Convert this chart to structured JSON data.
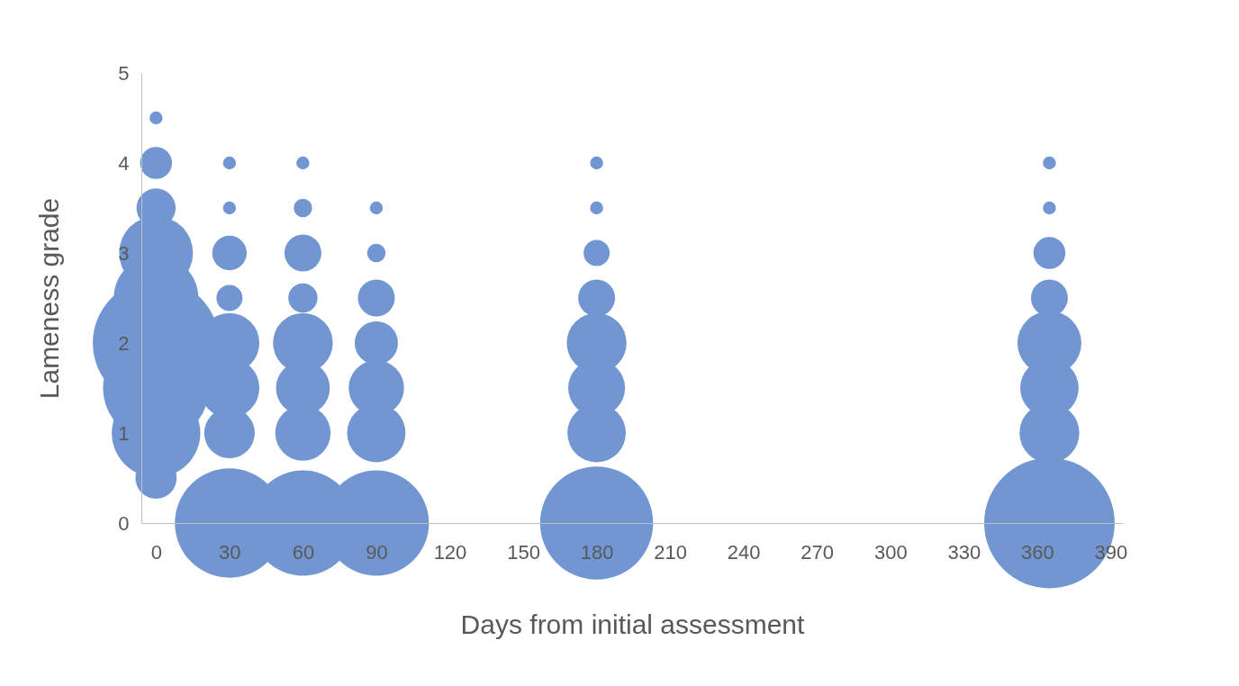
{
  "chart_data": {
    "type": "bubble",
    "xlabel": "Days from initial assessment",
    "ylabel": "Lameness grade",
    "relative": false,
    "x": [
      0,
      0,
      0,
      0,
      0,
      0,
      0,
      0,
      0,
      30,
      30,
      30,
      30,
      30,
      30,
      30,
      30,
      60,
      60,
      60,
      60,
      60,
      60,
      60,
      60,
      90,
      90,
      90,
      90,
      90,
      90,
      90,
      180,
      180,
      180,
      180,
      180,
      180,
      180,
      180,
      365,
      365,
      365,
      365,
      365,
      365,
      365,
      365
    ],
    "values": [
      4.5,
      4,
      3.5,
      3,
      2.5,
      2,
      1.5,
      1,
      0.5,
      4,
      3.5,
      3,
      2.5,
      2,
      1.5,
      1,
      0,
      4,
      3.5,
      3,
      2.5,
      2,
      1.5,
      1,
      0,
      3.5,
      3,
      2.5,
      2,
      1.5,
      1,
      0,
      4,
      3.5,
      3,
      2.5,
      2,
      1.5,
      1,
      0,
      4,
      3.5,
      3,
      2.5,
      2,
      1.5,
      1,
      0
    ],
    "sizes": [
      0.01,
      0.06,
      0.09,
      0.32,
      0.42,
      0.94,
      0.66,
      0.46,
      0.1,
      0.01,
      0.01,
      0.07,
      0.04,
      0.21,
      0.21,
      0.15,
      0.7,
      0.01,
      0.02,
      0.08,
      0.05,
      0.21,
      0.17,
      0.18,
      0.65,
      0.01,
      0.02,
      0.08,
      0.11,
      0.18,
      0.2,
      0.65,
      0.01,
      0.01,
      0.04,
      0.08,
      0.21,
      0.19,
      0.2,
      0.75,
      0.01,
      0.01,
      0.06,
      0.08,
      0.24,
      0.2,
      0.21,
      1
    ],
    "color": "#7196d1",
    "xlim": [
      -6,
      395
    ],
    "xticks": [
      0,
      30,
      60,
      90,
      120,
      150,
      180,
      210,
      240,
      270,
      300,
      330,
      360,
      390
    ],
    "ylim": [
      0,
      5
    ],
    "yticks": [
      0,
      1,
      2,
      3,
      4,
      5
    ],
    "grid": false
  }
}
